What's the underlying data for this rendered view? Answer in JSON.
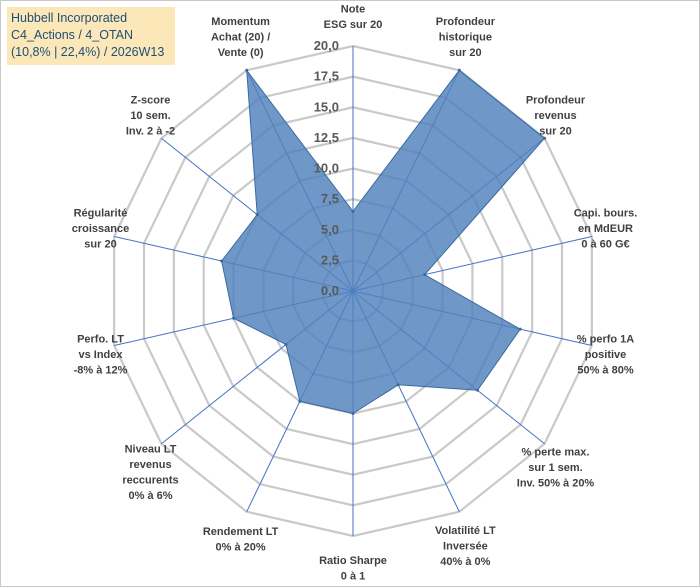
{
  "header": {
    "line1": "Hubbell Incorporated",
    "line2": "C4_Actions / 4_OTAN",
    "line3": "(10,8% | 22,4%) / 2026W13"
  },
  "chart_data": {
    "type": "radar",
    "title": "Hubbell Incorporated",
    "rlim": [
      0,
      20
    ],
    "tick_values": [
      0,
      2.5,
      5,
      7.5,
      10,
      12.5,
      15,
      17.5,
      20
    ],
    "tick_labels": [
      "0,0",
      "2,5",
      "5,0",
      "7,5",
      "10,0",
      "12,5",
      "15,0",
      "17,5",
      "20,0"
    ],
    "grid": true,
    "colors": {
      "fill": "#4f81bd",
      "stroke": "#3a6a9e",
      "grid": "#c9c9c9",
      "axis": "#4472c4"
    },
    "axes": [
      {
        "lines": [
          "Note",
          "ESG sur 20"
        ]
      },
      {
        "lines": [
          "Profondeur",
          "historique",
          "sur 20"
        ]
      },
      {
        "lines": [
          "Profondeur",
          "revenus",
          "sur 20"
        ]
      },
      {
        "lines": [
          "Capi. bours.",
          "en MdEUR",
          "0 à 60 G€"
        ]
      },
      {
        "lines": [
          "% perfo 1A",
          "positive",
          "50% à 80%"
        ]
      },
      {
        "lines": [
          "% perte max.",
          "sur 1 sem.",
          "Inv. 50% à 20%"
        ]
      },
      {
        "lines": [
          "Volatilité LT",
          "Inversée",
          "40% à 0%"
        ]
      },
      {
        "lines": [
          "Ratio Sharpe",
          "0 à 1"
        ]
      },
      {
        "lines": [
          "Rendement LT",
          "0% à 20%"
        ]
      },
      {
        "lines": [
          "Niveau LT",
          "revenus",
          "reccurents",
          "0% à 6%"
        ]
      },
      {
        "lines": [
          "Perfo. LT",
          "vs Index",
          "-8% à 12%"
        ]
      },
      {
        "lines": [
          "Régularité",
          "croissance",
          "sur 20"
        ]
      },
      {
        "lines": [
          "Z-score",
          "10 sem.",
          "Inv. 2 à -2"
        ]
      },
      {
        "lines": [
          "Momentum",
          "Achat (20) /",
          "Vente (0)"
        ]
      }
    ],
    "series": [
      {
        "name": "Hubbell Incorporated",
        "values": [
          6.5,
          20,
          20,
          6,
          14,
          13,
          8.5,
          10,
          10,
          7,
          10,
          11,
          10,
          20
        ]
      }
    ]
  }
}
